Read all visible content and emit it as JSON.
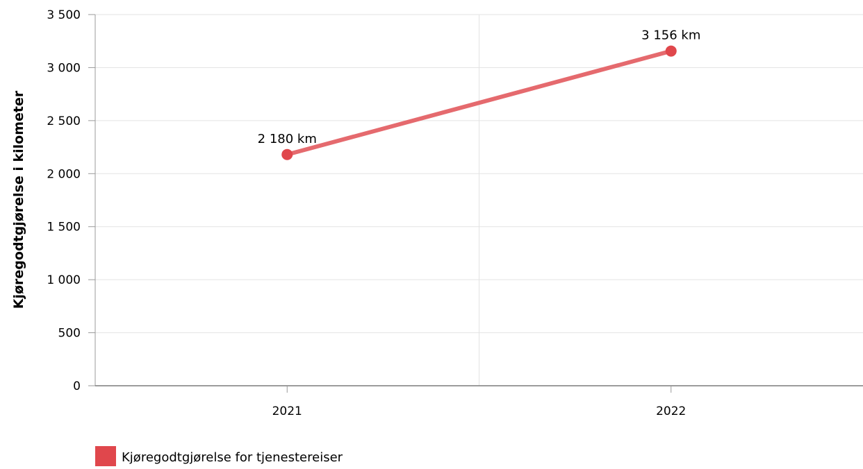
{
  "chart_data": {
    "type": "line",
    "xlabel": "",
    "ylabel": "Kjøregodtgjørelse i kilometer",
    "ylim": [
      0,
      3500
    ],
    "yticks": [
      0,
      500,
      1000,
      1500,
      2000,
      2500,
      3000,
      3500
    ],
    "ytick_labels": [
      "0",
      "500",
      "1 000",
      "1 500",
      "2 000",
      "2 500",
      "3 000",
      "3 500"
    ],
    "categories": [
      "2021",
      "2022"
    ],
    "series": [
      {
        "name": "Kjøregodtgjørelse for tjenestereiser",
        "values": [
          2180,
          3156
        ],
        "data_labels": [
          "2 180 km",
          "3 156 km"
        ],
        "color": "#e0474c",
        "line_color": "#e56a6e"
      }
    ],
    "grid": true,
    "legend_position": "bottom-left"
  }
}
